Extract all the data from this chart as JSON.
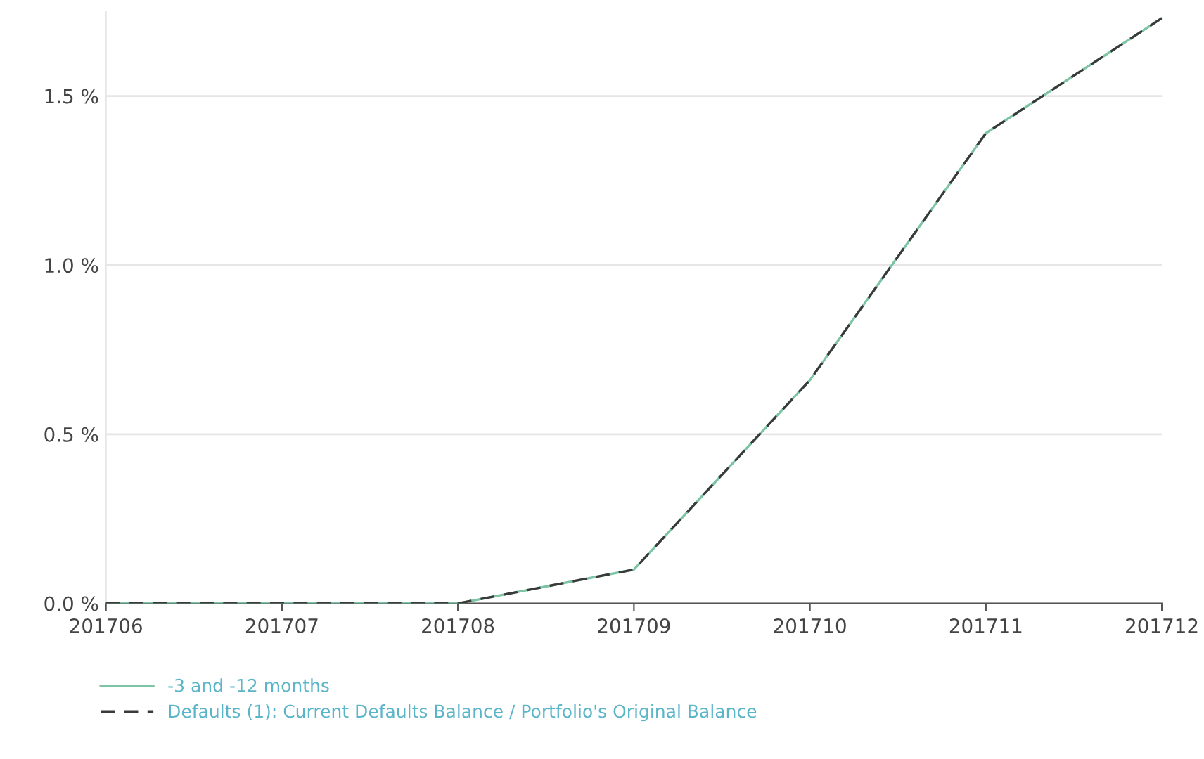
{
  "chart_data": {
    "type": "line",
    "categories": [
      "201706",
      "201707",
      "201708",
      "201709",
      "201710",
      "201711",
      "201712"
    ],
    "series": [
      {
        "name": "-3 and -12 months",
        "color": "#7cc4a4",
        "line_style": "solid",
        "values": [
          0,
          0,
          0,
          0.1,
          0.66,
          1.39,
          1.73
        ]
      },
      {
        "name": "Defaults (1): Current Defaults Balance / Portfolio's Original Balance",
        "color": "#3a3a3a",
        "line_style": "dashed",
        "values": [
          0,
          0,
          0,
          0.1,
          0.66,
          1.39,
          1.73
        ]
      }
    ],
    "yticks": [
      {
        "value": 0,
        "label": "0.0 %"
      },
      {
        "value": 0.5,
        "label": "0.5 %"
      },
      {
        "value": 1.0,
        "label": "1.0 %"
      },
      {
        "value": 1.5,
        "label": "1.5 %"
      }
    ],
    "ylim": [
      0,
      1.75
    ],
    "grid": "y",
    "legend": "bottom left",
    "marker": "none"
  }
}
